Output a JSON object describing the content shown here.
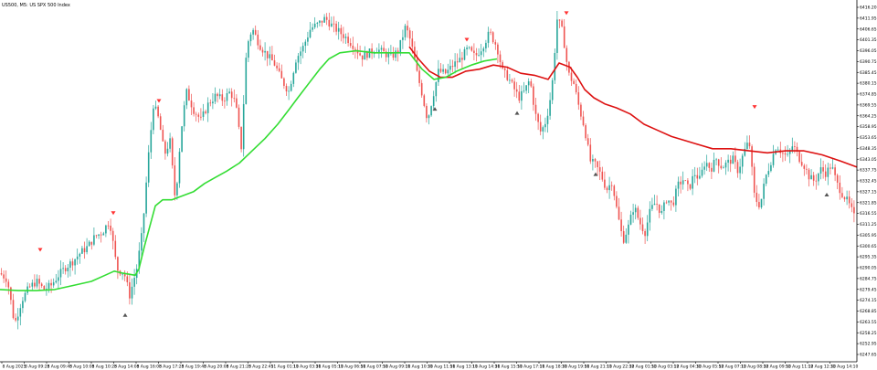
{
  "header": {
    "title": "US500, M5:  US SPX 500 Index"
  },
  "colors": {
    "background": "#ffffff",
    "bull_candle": "#26a69a",
    "bear_candle": "#ef5350",
    "fast_ma": "#33dd33",
    "slow_ma": "#dd1111",
    "axis": "#000000",
    "signal_arrow": "#ff3333"
  },
  "chart_data": {
    "type": "candlestick",
    "symbol": "US500",
    "timeframe": "M5",
    "ylim": [
      6244.5,
      6420.0
    ],
    "price_axis_ticks": [
      "6416.20",
      "6411.95",
      "6406.65",
      "6401.35",
      "6396.05",
      "6390.75",
      "6385.45",
      "6380.15",
      "6374.85",
      "6369.55",
      "6364.25",
      "6358.95",
      "6353.65",
      "6348.35",
      "6343.05",
      "6337.75",
      "6332.45",
      "6327.15",
      "6321.85",
      "6316.55",
      "6311.25",
      "6305.95",
      "6300.65",
      "6295.35",
      "6290.05",
      "6284.75",
      "6279.45",
      "6274.15",
      "6268.85",
      "6263.55",
      "6258.25",
      "6252.95",
      "6247.65"
    ],
    "time_axis_ticks": [
      "8 Aug 2025",
      "8 Aug 09:25",
      "8 Aug 09:45",
      "8 Aug 10:05",
      "8 Aug 10:25",
      "8 Aug 14:05",
      "8 Aug 16:05",
      "8 Aug 17:25",
      "8 Aug 19:45",
      "8 Aug 20:05",
      "8 Aug 21:25",
      "8 Aug 22:45",
      "11 Aug 01:10",
      "11 Aug 03:30",
      "11 Aug 05:10",
      "11 Aug 06:50",
      "11 Aug 07:50",
      "11 Aug 09:10",
      "11 Aug 10:30",
      "11 Aug 11:50",
      "11 Aug 13:10",
      "11 Aug 14:30",
      "11 Aug 15:50",
      "11 Aug 17:10",
      "11 Aug 18:30",
      "11 Aug 19:50",
      "11 Aug 21:10",
      "11 Aug 22:30",
      "12 Aug 01:50",
      "12 Aug 03:10",
      "12 Aug 04:30",
      "12 Aug 05:50",
      "12 Aug 07:10",
      "12 Aug 08:30",
      "12 Aug 09:50",
      "12 Aug 11:10",
      "12 Aug 12:30",
      "12 Aug 14:10"
    ],
    "close_path": [
      [
        0,
        6287
      ],
      [
        8,
        6284
      ],
      [
        16,
        6262
      ],
      [
        24,
        6274
      ],
      [
        32,
        6280
      ],
      [
        40,
        6283
      ],
      [
        48,
        6279
      ],
      [
        56,
        6281
      ],
      [
        64,
        6286
      ],
      [
        72,
        6290
      ],
      [
        80,
        6293
      ],
      [
        88,
        6297
      ],
      [
        96,
        6300
      ],
      [
        104,
        6305
      ],
      [
        112,
        6307
      ],
      [
        120,
        6313
      ],
      [
        128,
        6289
      ],
      [
        136,
        6287
      ],
      [
        142,
        6276
      ],
      [
        150,
        6290
      ],
      [
        156,
        6308
      ],
      [
        162,
        6342
      ],
      [
        168,
        6370
      ],
      [
        174,
        6362
      ],
      [
        180,
        6345
      ],
      [
        186,
        6352
      ],
      [
        192,
        6322
      ],
      [
        198,
        6356
      ],
      [
        204,
        6376
      ],
      [
        212,
        6367
      ],
      [
        220,
        6362
      ],
      [
        228,
        6370
      ],
      [
        236,
        6374
      ],
      [
        244,
        6372
      ],
      [
        252,
        6376
      ],
      [
        258,
        6370
      ],
      [
        264,
        6348
      ],
      [
        270,
        6398
      ],
      [
        276,
        6407
      ],
      [
        284,
        6399
      ],
      [
        292,
        6394
      ],
      [
        300,
        6390
      ],
      [
        308,
        6382
      ],
      [
        316,
        6376
      ],
      [
        324,
        6392
      ],
      [
        332,
        6398
      ],
      [
        340,
        6407
      ],
      [
        348,
        6409
      ],
      [
        356,
        6412
      ],
      [
        364,
        6408
      ],
      [
        372,
        6405
      ],
      [
        380,
        6402
      ],
      [
        388,
        6398
      ],
      [
        396,
        6393
      ],
      [
        404,
        6395
      ],
      [
        412,
        6397
      ],
      [
        420,
        6395
      ],
      [
        428,
        6393
      ],
      [
        436,
        6396
      ],
      [
        444,
        6408
      ],
      [
        450,
        6400
      ],
      [
        456,
        6386
      ],
      [
        462,
        6375
      ],
      [
        468,
        6362
      ],
      [
        474,
        6374
      ],
      [
        480,
        6386
      ],
      [
        488,
        6385
      ],
      [
        496,
        6389
      ],
      [
        504,
        6392
      ],
      [
        512,
        6397
      ],
      [
        520,
        6393
      ],
      [
        528,
        6398
      ],
      [
        536,
        6405
      ],
      [
        544,
        6398
      ],
      [
        550,
        6386
      ],
      [
        556,
        6383
      ],
      [
        562,
        6378
      ],
      [
        568,
        6373
      ],
      [
        574,
        6376
      ],
      [
        580,
        6382
      ],
      [
        586,
        6365
      ],
      [
        592,
        6356
      ],
      [
        598,
        6362
      ],
      [
        604,
        6377
      ],
      [
        610,
        6412
      ],
      [
        616,
        6405
      ],
      [
        622,
        6385
      ],
      [
        628,
        6380
      ],
      [
        634,
        6368
      ],
      [
        640,
        6358
      ],
      [
        646,
        6342
      ],
      [
        652,
        6340
      ],
      [
        658,
        6335
      ],
      [
        664,
        6328
      ],
      [
        670,
        6332
      ],
      [
        676,
        6316
      ],
      [
        682,
        6303
      ],
      [
        688,
        6310
      ],
      [
        694,
        6320
      ],
      [
        700,
        6312
      ],
      [
        706,
        6307
      ],
      [
        712,
        6318
      ],
      [
        718,
        6322
      ],
      [
        724,
        6316
      ],
      [
        730,
        6324
      ],
      [
        736,
        6320
      ],
      [
        742,
        6330
      ],
      [
        748,
        6333
      ],
      [
        754,
        6328
      ],
      [
        760,
        6336
      ],
      [
        766,
        6333
      ],
      [
        772,
        6342
      ],
      [
        778,
        6338
      ],
      [
        784,
        6343
      ],
      [
        790,
        6339
      ],
      [
        796,
        6341
      ],
      [
        802,
        6343
      ],
      [
        808,
        6337
      ],
      [
        814,
        6346
      ],
      [
        820,
        6352
      ],
      [
        826,
        6324
      ],
      [
        832,
        6320
      ],
      [
        838,
        6334
      ],
      [
        844,
        6342
      ],
      [
        850,
        6350
      ],
      [
        856,
        6346
      ],
      [
        862,
        6344
      ],
      [
        868,
        6350
      ],
      [
        874,
        6344
      ],
      [
        880,
        6340
      ],
      [
        886,
        6334
      ],
      [
        892,
        6332
      ],
      [
        898,
        6338
      ],
      [
        904,
        6336
      ],
      [
        910,
        6340
      ],
      [
        916,
        6331
      ],
      [
        922,
        6326
      ],
      [
        928,
        6322
      ],
      [
        934,
        6316
      ],
      [
        938,
        6310
      ]
    ],
    "fast_ma": [
      [
        0,
        6279
      ],
      [
        20,
        6278.5
      ],
      [
        40,
        6278.5
      ],
      [
        60,
        6279
      ],
      [
        80,
        6281
      ],
      [
        100,
        6283
      ],
      [
        115,
        6286
      ],
      [
        125,
        6288
      ],
      [
        135,
        6287
      ],
      [
        148,
        6286
      ],
      [
        152,
        6289
      ],
      [
        158,
        6300
      ],
      [
        164,
        6310
      ],
      [
        170,
        6320
      ],
      [
        178,
        6323
      ],
      [
        188,
        6323
      ],
      [
        200,
        6325
      ],
      [
        212,
        6327
      ],
      [
        224,
        6331
      ],
      [
        236,
        6334
      ],
      [
        248,
        6337
      ],
      [
        262,
        6341
      ],
      [
        276,
        6347
      ],
      [
        290,
        6353
      ],
      [
        304,
        6360
      ],
      [
        316,
        6367
      ],
      [
        326,
        6373
      ],
      [
        338,
        6380
      ],
      [
        350,
        6387
      ],
      [
        360,
        6392
      ],
      [
        372,
        6395
      ],
      [
        390,
        6396
      ],
      [
        410,
        6395
      ],
      [
        430,
        6395
      ],
      [
        448,
        6395
      ],
      [
        462,
        6387
      ],
      [
        475,
        6382
      ],
      [
        488,
        6383
      ],
      [
        500,
        6386
      ],
      [
        516,
        6389
      ],
      [
        530,
        6391
      ],
      [
        544,
        6392
      ]
    ],
    "slow_ma": [
      [
        448,
        6398
      ],
      [
        458,
        6392
      ],
      [
        470,
        6386
      ],
      [
        482,
        6383
      ],
      [
        495,
        6383
      ],
      [
        510,
        6386
      ],
      [
        525,
        6387
      ],
      [
        540,
        6389
      ],
      [
        555,
        6388
      ],
      [
        570,
        6385
      ],
      [
        585,
        6384
      ],
      [
        600,
        6382
      ],
      [
        612,
        6390
      ],
      [
        624,
        6388
      ],
      [
        632,
        6383
      ],
      [
        640,
        6377
      ],
      [
        650,
        6373
      ],
      [
        662,
        6370
      ],
      [
        675,
        6368
      ],
      [
        690,
        6365
      ],
      [
        705,
        6360
      ],
      [
        720,
        6357
      ],
      [
        735,
        6354
      ],
      [
        750,
        6352
      ],
      [
        765,
        6350
      ],
      [
        780,
        6348
      ],
      [
        800,
        6348
      ],
      [
        820,
        6347
      ],
      [
        840,
        6346
      ],
      [
        860,
        6347
      ],
      [
        880,
        6347
      ],
      [
        900,
        6345
      ],
      [
        920,
        6342
      ],
      [
        938,
        6339
      ]
    ],
    "signal_arrows": [
      {
        "x": 44,
        "price": 6298,
        "dir": "down"
      },
      {
        "x": 124,
        "price": 6316,
        "dir": "down"
      },
      {
        "x": 137,
        "price": 6267,
        "dir": "up"
      },
      {
        "x": 174,
        "price": 6371,
        "dir": "down"
      },
      {
        "x": 476,
        "price": 6368,
        "dir": "up"
      },
      {
        "x": 511,
        "price": 6401,
        "dir": "down"
      },
      {
        "x": 566,
        "price": 6366,
        "dir": "up"
      },
      {
        "x": 620,
        "price": 6414,
        "dir": "down"
      },
      {
        "x": 652,
        "price": 6336,
        "dir": "up"
      },
      {
        "x": 826,
        "price": 6368,
        "dir": "down"
      },
      {
        "x": 905,
        "price": 6326,
        "dir": "up"
      }
    ]
  }
}
